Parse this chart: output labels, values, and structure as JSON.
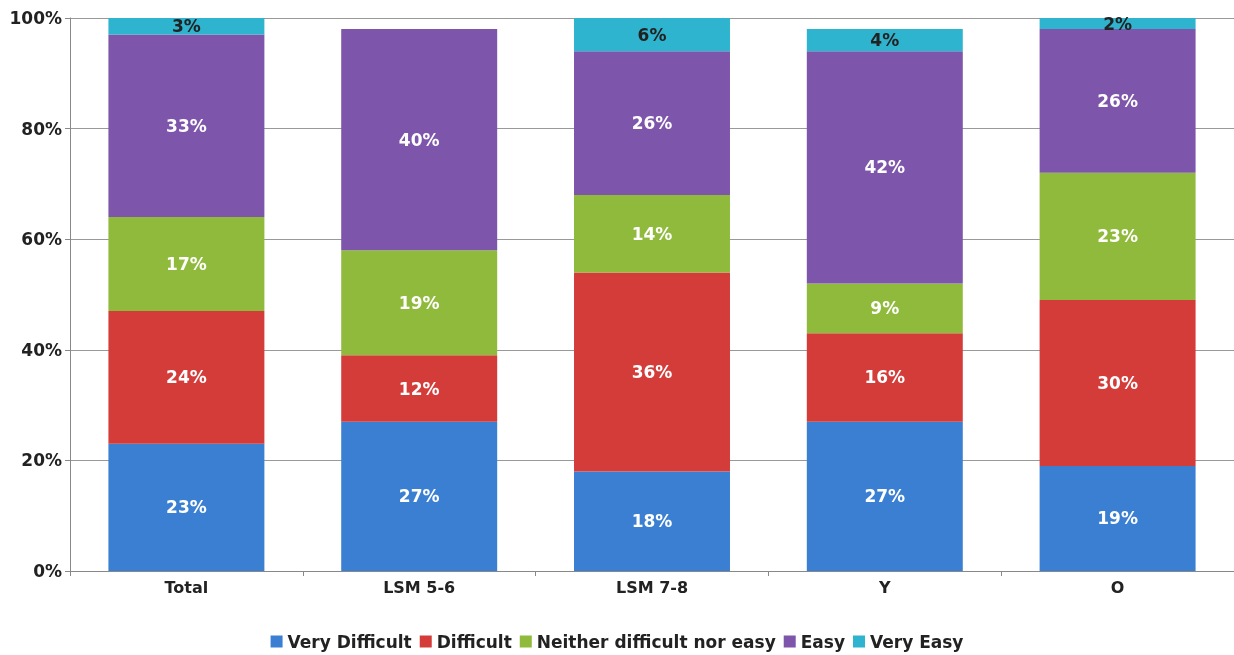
{
  "chart_data": {
    "type": "bar",
    "stacked": true,
    "categories": [
      "Total",
      "LSM 5-6",
      "LSM 7-8",
      "Y",
      "O"
    ],
    "series": [
      {
        "name": "Very Difficult",
        "color": "#3b7fd2",
        "values": [
          23,
          27,
          18,
          27,
          19
        ],
        "value_labels": [
          "23%",
          "27%",
          "18%",
          "27%",
          "19%"
        ]
      },
      {
        "name": "Difficult",
        "color": "#d43c3a",
        "values": [
          24,
          12,
          36,
          16,
          30
        ],
        "value_labels": [
          "24%",
          "12%",
          "36%",
          "16%",
          "30%"
        ]
      },
      {
        "name": "Neither difficult nor easy",
        "color": "#8fba3c",
        "values": [
          17,
          19,
          14,
          9,
          23
        ],
        "value_labels": [
          "17%",
          "19%",
          "14%",
          "9%",
          "23%"
        ]
      },
      {
        "name": "Easy",
        "color": "#7d55ab",
        "values": [
          33,
          40,
          26,
          42,
          26
        ],
        "value_labels": [
          "33%",
          "40%",
          "26%",
          "42%",
          "26%"
        ]
      },
      {
        "name": "Very Easy",
        "color": "#2fb4cf",
        "values": [
          3,
          null,
          6,
          4,
          2
        ],
        "value_labels": [
          "3%",
          null,
          "6%",
          "4%",
          "2%"
        ]
      }
    ],
    "ylim": [
      0,
      100
    ],
    "yticks": [
      {
        "value": 0,
        "label": "0%"
      },
      {
        "value": 20,
        "label": "20%"
      },
      {
        "value": 40,
        "label": "40%"
      },
      {
        "value": 60,
        "label": "60%"
      },
      {
        "value": 80,
        "label": "80%"
      },
      {
        "value": 100,
        "label": "100%"
      }
    ],
    "grid": "y",
    "legend": "bottom"
  }
}
